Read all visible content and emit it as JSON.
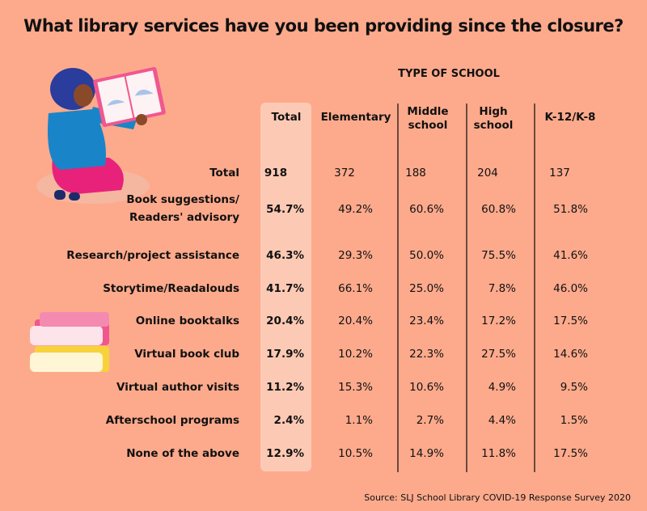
{
  "title": "What library services have you been providing since the closure?",
  "group_header": "TYPE OF SCHOOL",
  "source": "Source: SLJ School Library COVID-19 Response Survey 2020",
  "chart_data": {
    "type": "table",
    "title": "What library services have you been providing since the closure?",
    "columns": [
      "Total",
      "Elementary",
      "Middle school",
      "High school",
      "K-12/K-8"
    ],
    "rows": [
      {
        "label": "Total",
        "values": [
          "918",
          "372",
          "188",
          "204",
          "137"
        ]
      },
      {
        "label": "Book suggestions/ Readers' advisory",
        "values": [
          "54.7%",
          "49.2%",
          "60.6%",
          "60.8%",
          "51.8%"
        ]
      },
      {
        "label": "Research/project assistance",
        "values": [
          "46.3%",
          "29.3%",
          "50.0%",
          "75.5%",
          "41.6%"
        ]
      },
      {
        "label": "Storytime/Readalouds",
        "values": [
          "41.7%",
          "66.1%",
          "25.0%",
          "7.8%",
          "46.0%"
        ]
      },
      {
        "label": "Online booktalks",
        "values": [
          "20.4%",
          "20.4%",
          "23.4%",
          "17.2%",
          "17.5%"
        ]
      },
      {
        "label": "Virtual book club",
        "values": [
          "17.9%",
          "10.2%",
          "22.3%",
          "27.5%",
          "14.6%"
        ]
      },
      {
        "label": "Virtual author visits",
        "values": [
          "11.2%",
          "15.3%",
          "10.6%",
          "4.9%",
          "9.5%"
        ]
      },
      {
        "label": "Afterschool programs",
        "values": [
          "2.4%",
          "1.1%",
          "2.7%",
          "4.4%",
          "1.5%"
        ]
      },
      {
        "label": "None of the above",
        "values": [
          "12.9%",
          "10.5%",
          "14.9%",
          "11.8%",
          "17.5%"
        ]
      }
    ]
  },
  "colors": {
    "background": "#fdaa8c",
    "total_column": "#fccab4",
    "divider": "#6b4a3e"
  },
  "icons": [
    "woman-reading-illustration",
    "stacked-books-illustration"
  ]
}
